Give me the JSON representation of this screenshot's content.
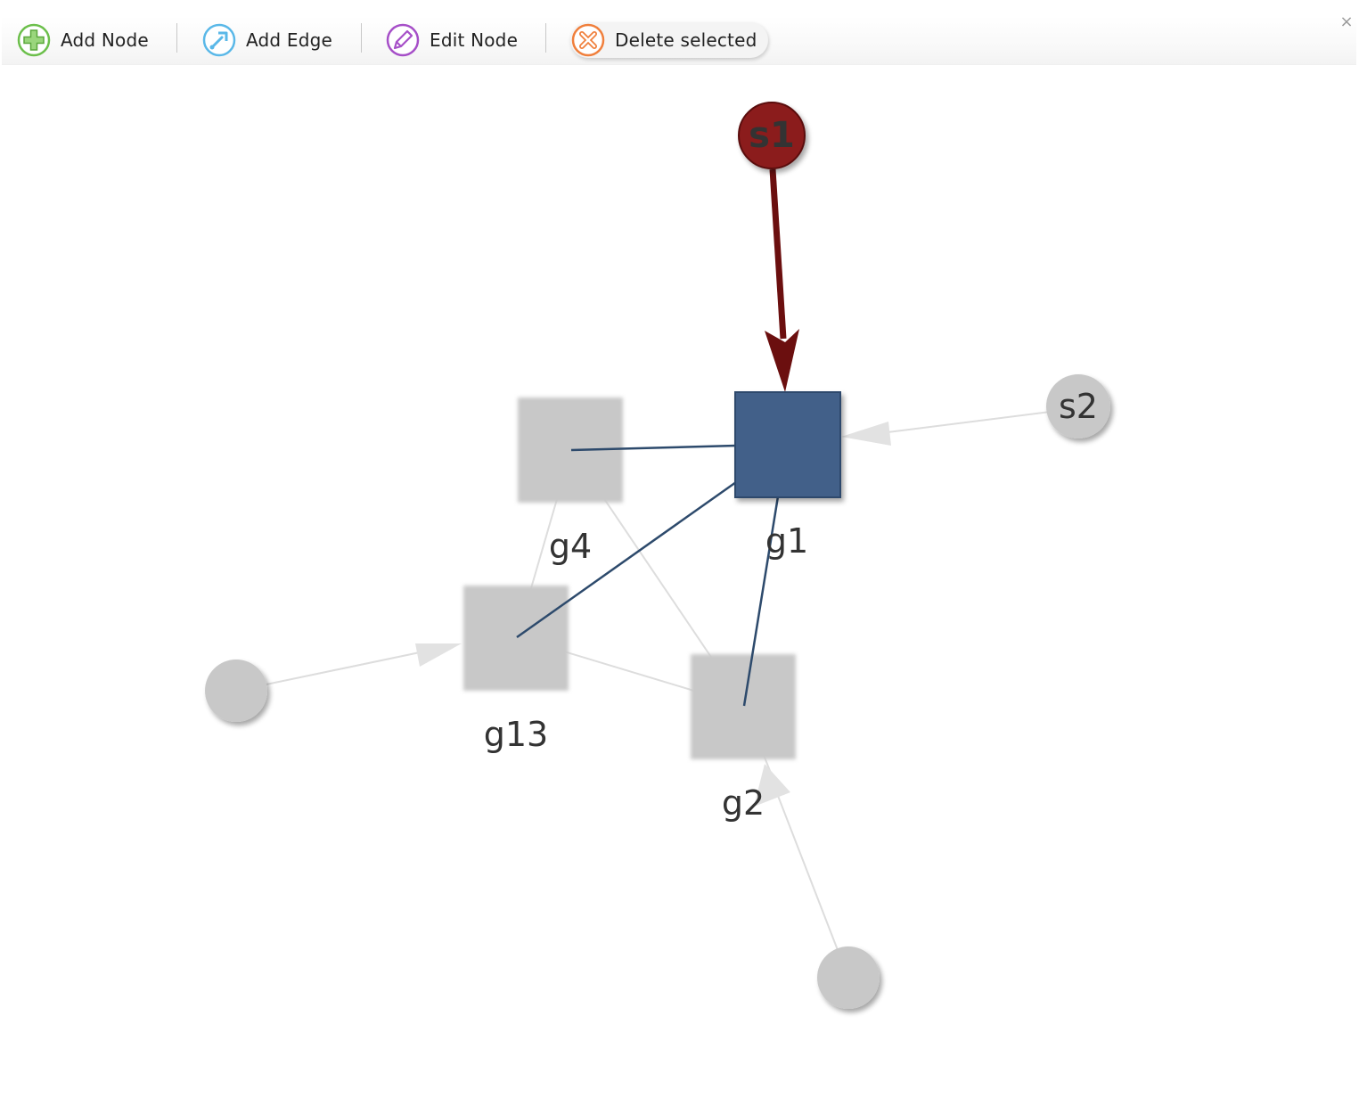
{
  "toolbar": {
    "add_node": "Add Node",
    "add_edge": "Add Edge",
    "edit_node": "Edit Node",
    "delete_selected": "Delete selected",
    "close_symbol": "×"
  },
  "graph": {
    "nodes": {
      "s1": "s1",
      "s2": "s2",
      "g1": "g1",
      "g2": "g2",
      "g4": "g4",
      "g13": "g13"
    },
    "colors": {
      "selected_node": "#426189",
      "highlight_source": "#8b1c1c",
      "highlight_edge": "#6b0f0f",
      "connected_edge": "#2d4a6c",
      "faded_node": "#c8c8c8",
      "faded_edge": "#dddddd",
      "add_node_icon": "#6cbf4b",
      "add_edge_icon": "#5ab8e8",
      "edit_node_icon": "#a64fc8",
      "delete_icon": "#f07f3c"
    }
  }
}
